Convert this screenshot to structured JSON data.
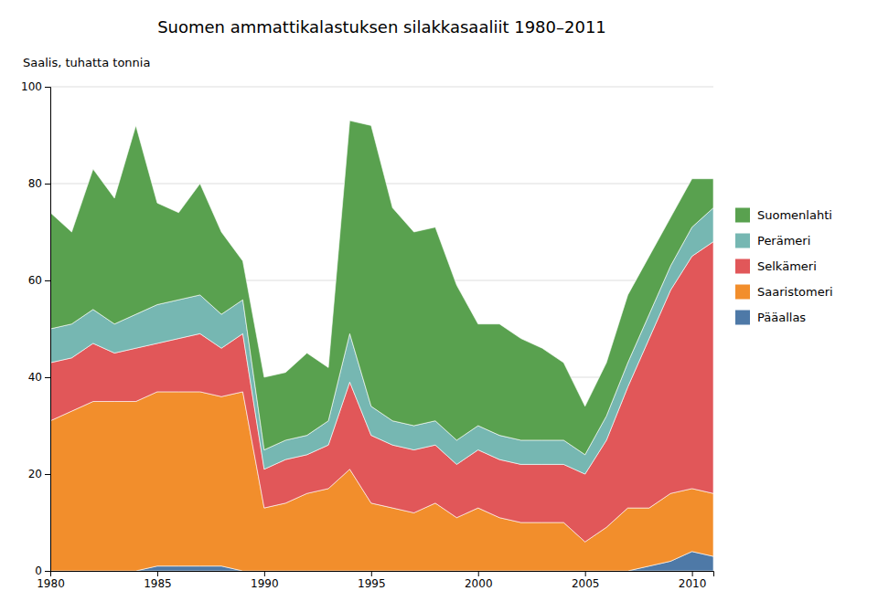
{
  "chart_data": {
    "type": "area",
    "stacked": true,
    "title": "Suomen ammattikalastuksen silakkasaaliit 1980–2011",
    "ylabel": "Saalis, tuhatta tonnia",
    "x": [
      1980,
      1981,
      1982,
      1983,
      1984,
      1985,
      1986,
      1987,
      1988,
      1989,
      1990,
      1991,
      1992,
      1993,
      1994,
      1995,
      1996,
      1997,
      1998,
      1999,
      2000,
      2001,
      2002,
      2003,
      2004,
      2005,
      2006,
      2007,
      2008,
      2009,
      2010,
      2011
    ],
    "series": [
      {
        "name": "Pääallas",
        "values": [
          0,
          0,
          0,
          0,
          0,
          1,
          1,
          1,
          1,
          0,
          0,
          0,
          0,
          0,
          0,
          0,
          0,
          0,
          0,
          0,
          0,
          0,
          0,
          0,
          0,
          0,
          0,
          0,
          1,
          2,
          4,
          3
        ]
      },
      {
        "name": "Saaristomeri",
        "values": [
          31,
          33,
          35,
          35,
          35,
          36,
          36,
          36,
          35,
          37,
          13,
          14,
          16,
          17,
          21,
          14,
          13,
          12,
          14,
          11,
          13,
          11,
          10,
          10,
          10,
          6,
          9,
          13,
          12,
          14,
          13,
          13
        ]
      },
      {
        "name": "Selkämeri",
        "values": [
          12,
          11,
          12,
          10,
          11,
          10,
          11,
          12,
          10,
          12,
          8,
          9,
          8,
          9,
          18,
          14,
          13,
          13,
          12,
          11,
          12,
          12,
          12,
          12,
          12,
          14,
          18,
          25,
          35,
          42,
          48,
          52
        ]
      },
      {
        "name": "Perämeri",
        "values": [
          7,
          7,
          7,
          6,
          7,
          8,
          8,
          8,
          7,
          7,
          4,
          4,
          4,
          5,
          10,
          6,
          5,
          5,
          5,
          5,
          5,
          5,
          5,
          5,
          5,
          4,
          5,
          5,
          5,
          5,
          6,
          7
        ]
      },
      {
        "name": "Suomenlahti",
        "values": [
          24,
          19,
          29,
          26,
          39,
          21,
          18,
          23,
          17,
          8,
          15,
          14,
          17,
          11,
          44,
          58,
          44,
          40,
          40,
          32,
          21,
          23,
          21,
          19,
          16,
          10,
          11,
          14,
          12,
          10,
          10,
          6
        ]
      }
    ],
    "xlim": [
      1980,
      2011
    ],
    "xticks": [
      1980,
      1985,
      1990,
      1995,
      2000,
      2005,
      2010
    ],
    "ylim": [
      0,
      100
    ],
    "yticks": [
      0,
      20,
      40,
      60,
      80,
      100
    ],
    "grid": true,
    "legend": "right"
  }
}
